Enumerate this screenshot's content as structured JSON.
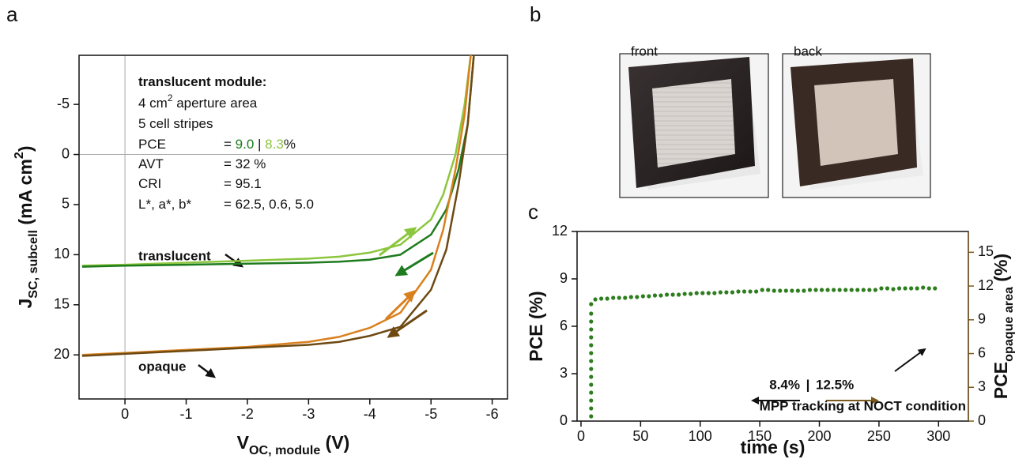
{
  "chart_data": [
    {
      "type": "line",
      "panel_label": "a",
      "x_label": {
        "parts": [
          {
            "text": "V"
          },
          {
            "text": "OC, module",
            "sub": true
          },
          {
            "text": " (V)"
          }
        ]
      },
      "y_label": {
        "parts": [
          {
            "text": "J"
          },
          {
            "text": "SC, subcell",
            "sub": true
          },
          {
            "text": " (mA cm"
          },
          {
            "text": "2",
            "sup": true
          },
          {
            "text": ")"
          }
        ]
      },
      "xlim": [
        0.75,
        -6.25
      ],
      "ylim": [
        24.4,
        -9.9
      ],
      "xticks": [
        0,
        -1,
        -2,
        -3,
        -4,
        -5,
        -6
      ],
      "yticks": [
        -5,
        0,
        5,
        10,
        15,
        20
      ],
      "zero_lines": true,
      "series": [
        {
          "color": "#8cc63e",
          "x": [
            0.7,
            0,
            -1,
            -2,
            -3,
            -3.5,
            -4,
            -4.5,
            -5,
            -5.2,
            -5.4,
            -5.55,
            -5.65
          ],
          "values": [
            11.1,
            11.0,
            10.8,
            10.6,
            10.4,
            10.2,
            9.8,
            9.0,
            6.5,
            4.0,
            0.0,
            -5.0,
            -9.9
          ]
        },
        {
          "color": "#1e7b1e",
          "x": [
            0.7,
            0,
            -1,
            -2,
            -3,
            -3.5,
            -4,
            -4.5,
            -5,
            -5.25,
            -5.45,
            -5.6,
            -5.7
          ],
          "values": [
            11.2,
            11.1,
            11.0,
            10.9,
            10.8,
            10.7,
            10.5,
            10.0,
            8.0,
            5.5,
            1.5,
            -3.0,
            -9.9
          ]
        },
        {
          "color": "#d9801e",
          "x": [
            0.7,
            0,
            -1,
            -2,
            -3,
            -3.5,
            -4,
            -4.5,
            -5,
            -5.2,
            -5.4,
            -5.55,
            -5.65
          ],
          "values": [
            20.0,
            19.8,
            19.5,
            19.2,
            18.7,
            18.2,
            17.3,
            15.8,
            11.5,
            7.5,
            1.5,
            -4.0,
            -9.9
          ]
        },
        {
          "color": "#6e4a12",
          "x": [
            0.7,
            0,
            -1,
            -2,
            -3,
            -3.5,
            -4,
            -4.5,
            -5,
            -5.25,
            -5.45,
            -5.6,
            -5.7
          ],
          "values": [
            20.1,
            19.9,
            19.6,
            19.3,
            19.0,
            18.7,
            18.1,
            17.2,
            13.5,
            9.5,
            3.0,
            -3.0,
            -9.9
          ]
        }
      ],
      "annotations": [
        "translucent",
        "opaque"
      ],
      "info": {
        "lines": [
          {
            "label": [
              {
                "text": "translucent module:",
                "bold": true
              }
            ]
          },
          {
            "label": [
              {
                "text": "4 cm"
              },
              {
                "text": "2",
                "sup": true
              },
              {
                "text": " aperture area"
              }
            ]
          },
          {
            "label": [
              {
                "text": "5 cell stripes"
              }
            ]
          },
          {
            "label": [
              {
                "text": "PCE"
              }
            ],
            "value": [
              {
                "text": "= "
              },
              {
                "text": "9.0",
                "color": "#1e7b1e"
              },
              {
                "text": " | "
              },
              {
                "text": "8.3",
                "color": "#8cc63e"
              },
              {
                "text": "%"
              }
            ]
          },
          {
            "label": [
              {
                "text": "AVT"
              }
            ],
            "value": [
              {
                "text": "= 32 %"
              }
            ]
          },
          {
            "label": [
              {
                "text": "CRI"
              }
            ],
            "value": [
              {
                "text": "= 95.1"
              }
            ]
          },
          {
            "label": [
              {
                "text": "L*, a*, b*"
              }
            ],
            "value": [
              {
                "text": "= 62.5, 0.6, 5.0"
              }
            ]
          }
        ]
      }
    },
    {
      "type": "scatter",
      "panel_label": "c",
      "x_label": {
        "parts": [
          {
            "text": "time (s)"
          }
        ]
      },
      "y_label": {
        "parts": [
          {
            "text": "PCE (%)"
          }
        ]
      },
      "y2_label": {
        "parts": [
          {
            "text": "PCE"
          },
          {
            "text": "opaque area",
            "sub": true
          },
          {
            "text": " (%)"
          }
        ],
        "color": "#7a5a1e"
      },
      "xlim": [
        -3.3,
        325
      ],
      "ylim": [
        0,
        12
      ],
      "y2lim": [
        0,
        16.85
      ],
      "xticks": [
        0,
        50,
        100,
        150,
        200,
        250,
        300
      ],
      "yticks": [
        0,
        3,
        6,
        9,
        12
      ],
      "y2ticks": [
        0,
        3,
        6,
        9,
        12,
        15
      ],
      "series": [
        {
          "color": "#2e7d1e",
          "x": [
            8.5,
            8.5,
            8.5,
            8.5,
            8.5,
            8.5,
            8.5,
            8.5,
            8.5,
            8.5,
            8.5,
            8.5,
            8.5,
            8.5,
            8.5,
            12,
            17,
            22,
            27,
            32,
            37,
            42,
            47,
            52,
            57,
            62,
            67,
            72,
            77,
            82,
            87,
            92,
            97,
            102,
            107,
            112,
            117,
            122,
            127,
            132,
            137,
            142,
            147,
            152,
            157,
            162,
            167,
            172,
            177,
            182,
            187,
            192,
            197,
            202,
            207,
            212,
            217,
            222,
            227,
            232,
            237,
            242,
            247,
            252,
            257,
            262,
            267,
            272,
            277,
            282,
            287,
            292,
            297
          ],
          "values": [
            0.3,
            0.8,
            1.3,
            1.8,
            2.3,
            2.8,
            3.3,
            3.8,
            4.3,
            4.8,
            5.3,
            5.8,
            6.3,
            6.8,
            7.4,
            7.7,
            7.75,
            7.75,
            7.8,
            7.8,
            7.8,
            7.85,
            7.85,
            7.9,
            7.9,
            7.95,
            7.95,
            8.0,
            8.0,
            8.0,
            8.05,
            8.05,
            8.1,
            8.1,
            8.1,
            8.1,
            8.15,
            8.15,
            8.15,
            8.2,
            8.2,
            8.2,
            8.2,
            8.3,
            8.3,
            8.25,
            8.25,
            8.25,
            8.25,
            8.25,
            8.25,
            8.3,
            8.3,
            8.3,
            8.3,
            8.3,
            8.3,
            8.3,
            8.3,
            8.3,
            8.3,
            8.3,
            8.3,
            8.4,
            8.4,
            8.35,
            8.4,
            8.4,
            8.4,
            8.4,
            8.45,
            8.4,
            8.4
          ]
        }
      ],
      "annotations": [
        {
          "text": "8.4%"
        },
        {
          "text": "|"
        },
        {
          "text": "12.5%",
          "color": "#7a5a1e"
        },
        {
          "text": "MPP tracking at NOCT condition"
        }
      ]
    }
  ],
  "panel_b": {
    "panel_label": "b",
    "photo_labels": [
      "front",
      "back"
    ]
  }
}
